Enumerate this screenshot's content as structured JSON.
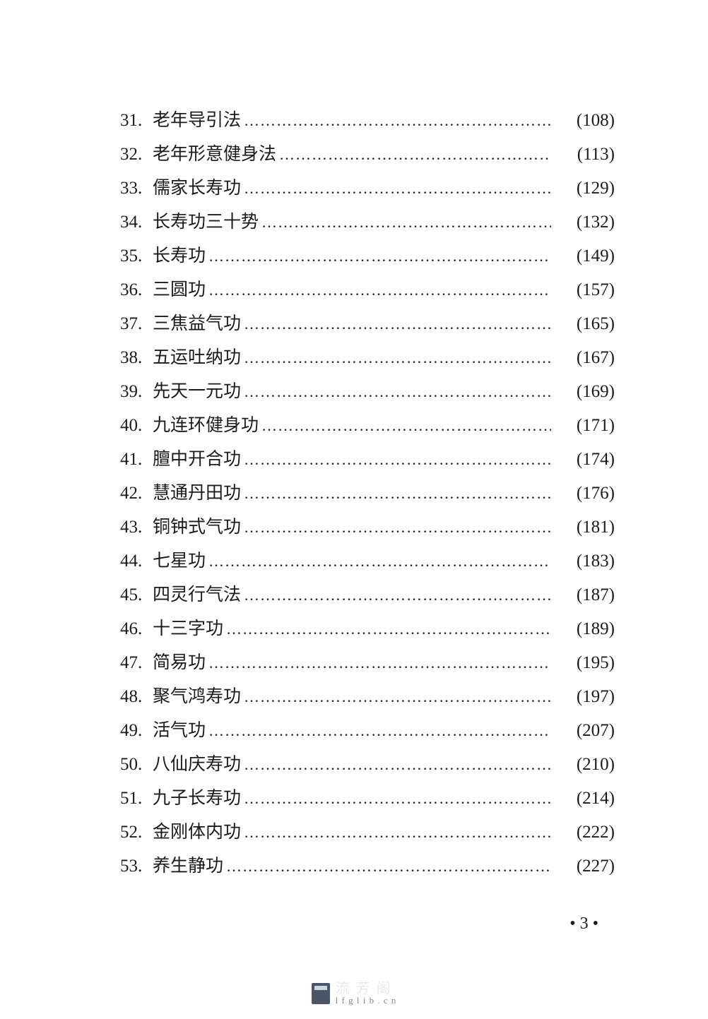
{
  "page_background": "#ffffff",
  "text_color": "#1a1a1a",
  "body_fontsize": 25,
  "line_height": 48,
  "toc": {
    "entries": [
      {
        "num": "31.",
        "title": "老年导引法",
        "page": "(108)"
      },
      {
        "num": "32.",
        "title": "老年形意健身法",
        "page": "(113)"
      },
      {
        "num": "33.",
        "title": "儒家长寿功",
        "page": "(129)"
      },
      {
        "num": "34.",
        "title": "长寿功三十势",
        "page": "(132)"
      },
      {
        "num": "35.",
        "title": "长寿功",
        "page": "(149)"
      },
      {
        "num": "36.",
        "title": "三圆功",
        "page": "(157)"
      },
      {
        "num": "37.",
        "title": "三焦益气功",
        "page": "(165)"
      },
      {
        "num": "38.",
        "title": "五运吐纳功",
        "page": "(167)"
      },
      {
        "num": "39.",
        "title": "先天一元功",
        "page": "(169)"
      },
      {
        "num": "40.",
        "title": "九连环健身功",
        "page": "(171)"
      },
      {
        "num": "41.",
        "title": "膻中开合功",
        "page": "(174)"
      },
      {
        "num": "42.",
        "title": "慧通丹田功",
        "page": "(176)"
      },
      {
        "num": "43.",
        "title": "铜钟式气功",
        "page": "(181)"
      },
      {
        "num": "44.",
        "title": "七星功",
        "page": "(183)"
      },
      {
        "num": "45.",
        "title": "四灵行气法",
        "page": "(187)"
      },
      {
        "num": "46.",
        "title": "十三字功",
        "page": "(189)"
      },
      {
        "num": "47.",
        "title": "简易功",
        "page": "(195)"
      },
      {
        "num": "48.",
        "title": "聚气鸿寿功",
        "page": "(197)"
      },
      {
        "num": "49.",
        "title": "活气功",
        "page": "(207)"
      },
      {
        "num": "50.",
        "title": "八仙庆寿功",
        "page": "(210)"
      },
      {
        "num": "51.",
        "title": "九子长寿功",
        "page": "(214)"
      },
      {
        "num": "52.",
        "title": "金刚体内功",
        "page": "(222)"
      },
      {
        "num": "53.",
        "title": "养生静功",
        "page": "(227)"
      }
    ],
    "leader_char": "…",
    "leader_repeat": 30
  },
  "page_number": "• 3 •",
  "footer": {
    "main": "流 芳 阁",
    "sub": "l f g l i b . c n"
  }
}
